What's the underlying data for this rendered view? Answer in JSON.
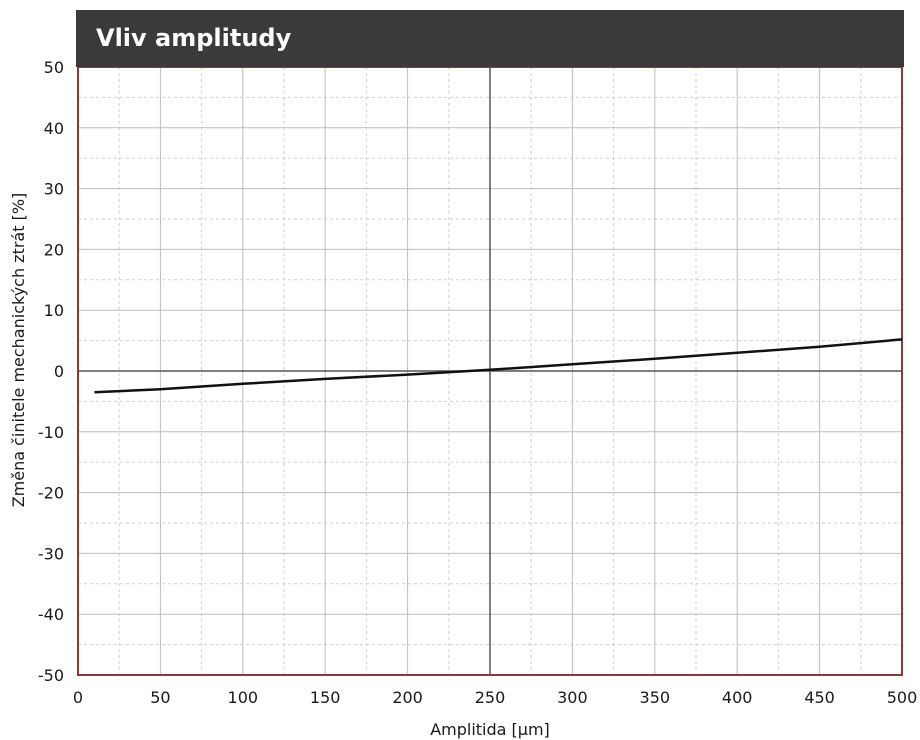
{
  "chart_data": {
    "type": "line",
    "title": "Vliv amplitudy",
    "xlabel": "Amplitida [µm]",
    "ylabel": "Změna činitele mechanických ztrát [%]",
    "xlim": [
      0,
      500
    ],
    "ylim": [
      -50,
      50
    ],
    "x_ticks": [
      "0",
      "50",
      "100",
      "150",
      "200",
      "250",
      "300",
      "350",
      "400",
      "450",
      "500"
    ],
    "y_ticks": [
      "50",
      "40",
      "30",
      "20",
      "10",
      "0",
      "-10",
      "-20",
      "-30",
      "-40",
      "-50"
    ],
    "grid": true,
    "series": [
      {
        "x": [
          10,
          50,
          100,
          150,
          200,
          250,
          300,
          350,
          400,
          450,
          500
        ],
        "y": [
          -3.5,
          -3.0,
          -2.1,
          -1.3,
          -0.6,
          0.2,
          1.1,
          2.0,
          3.0,
          4.0,
          5.2
        ]
      }
    ],
    "colors": {
      "title_bg": "#3a3a3a",
      "title_text": "#ffffff",
      "frame": "#8b3a3a",
      "line": "#111111",
      "grid_major": "#bdbdbd",
      "grid_minor": "#cfcfcf",
      "zero_line": "#555555"
    }
  }
}
